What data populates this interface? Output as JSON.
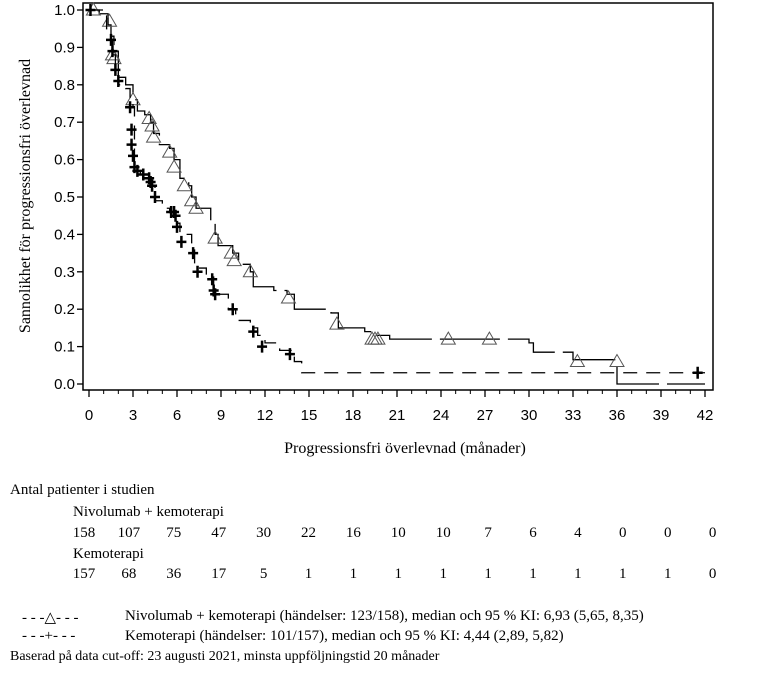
{
  "chart_data": {
    "type": "line",
    "subtype": "kaplan-meier",
    "ylabel": "Sannolikhet för progressionsfri överlevnad",
    "xlabel": "Progressionsfri överlevnad (månader)",
    "xlim": [
      0,
      42
    ],
    "ylim": [
      0,
      1
    ],
    "xticks": [
      0,
      3,
      6,
      9,
      12,
      15,
      18,
      21,
      24,
      27,
      30,
      33,
      36,
      39,
      42
    ],
    "yticks": [
      "0.0",
      "0.1",
      "0.2",
      "0.3",
      "0.4",
      "0.5",
      "0.6",
      "0.7",
      "0.8",
      "0.9",
      "1.0"
    ],
    "grid": false,
    "series": [
      {
        "name": "Nivolumab + kemoterapi",
        "line": "long-dash",
        "marker": "triangle",
        "steps": [
          [
            0,
            1.0
          ],
          [
            0.7,
            0.99
          ],
          [
            1.3,
            0.96
          ],
          [
            1.5,
            0.93
          ],
          [
            1.7,
            0.89
          ],
          [
            2.0,
            0.82
          ],
          [
            2.5,
            0.8
          ],
          [
            3.0,
            0.76
          ],
          [
            3.3,
            0.73
          ],
          [
            3.8,
            0.72
          ],
          [
            4.2,
            0.7
          ],
          [
            4.4,
            0.67
          ],
          [
            4.8,
            0.64
          ],
          [
            5.5,
            0.63
          ],
          [
            5.8,
            0.6
          ],
          [
            6.2,
            0.55
          ],
          [
            6.8,
            0.53
          ],
          [
            7.0,
            0.5
          ],
          [
            7.3,
            0.47
          ],
          [
            8.3,
            0.43
          ],
          [
            8.6,
            0.4
          ],
          [
            8.8,
            0.37
          ],
          [
            9.8,
            0.35
          ],
          [
            10.2,
            0.32
          ],
          [
            11.0,
            0.3
          ],
          [
            11.2,
            0.26
          ],
          [
            12.6,
            0.25
          ],
          [
            13.5,
            0.24
          ],
          [
            14.0,
            0.2
          ],
          [
            16.5,
            0.19
          ],
          [
            17.0,
            0.15
          ],
          [
            18.8,
            0.14
          ],
          [
            19.2,
            0.13
          ],
          [
            20.5,
            0.12
          ],
          [
            30.0,
            0.11
          ],
          [
            30.3,
            0.085
          ],
          [
            33.0,
            0.065
          ],
          [
            36.0,
            0.0
          ],
          [
            42.0,
            0.0
          ]
        ],
        "censored": [
          [
            0.3,
            1.0
          ],
          [
            1.4,
            0.97
          ],
          [
            1.6,
            0.88
          ],
          [
            1.7,
            0.87
          ],
          [
            3.0,
            0.76
          ],
          [
            4.1,
            0.71
          ],
          [
            4.3,
            0.69
          ],
          [
            4.4,
            0.66
          ],
          [
            5.5,
            0.62
          ],
          [
            5.8,
            0.58
          ],
          [
            6.5,
            0.53
          ],
          [
            7.0,
            0.49
          ],
          [
            7.3,
            0.47
          ],
          [
            8.6,
            0.39
          ],
          [
            9.7,
            0.35
          ],
          [
            9.9,
            0.33
          ],
          [
            11.0,
            0.3
          ],
          [
            13.6,
            0.23
          ],
          [
            16.9,
            0.16
          ],
          [
            19.3,
            0.12
          ],
          [
            19.5,
            0.12
          ],
          [
            19.7,
            0.12
          ],
          [
            24.5,
            0.12
          ],
          [
            27.3,
            0.12
          ],
          [
            33.3,
            0.06
          ],
          [
            36.0,
            0.06
          ]
        ]
      },
      {
        "name": "Kemoterapi",
        "line": "dash",
        "marker": "plus",
        "steps": [
          [
            0,
            1.0
          ],
          [
            1.2,
            0.95
          ],
          [
            1.5,
            0.92
          ],
          [
            1.6,
            0.88
          ],
          [
            1.8,
            0.84
          ],
          [
            2.0,
            0.8
          ],
          [
            2.5,
            0.79
          ],
          [
            2.8,
            0.75
          ],
          [
            3.0,
            0.74
          ],
          [
            3.1,
            0.57
          ],
          [
            3.5,
            0.56
          ],
          [
            4.0,
            0.55
          ],
          [
            4.3,
            0.53
          ],
          [
            4.5,
            0.49
          ],
          [
            5.0,
            0.47
          ],
          [
            5.5,
            0.46
          ],
          [
            6.0,
            0.43
          ],
          [
            6.2,
            0.4
          ],
          [
            7.0,
            0.36
          ],
          [
            7.2,
            0.31
          ],
          [
            8.0,
            0.29
          ],
          [
            8.5,
            0.24
          ],
          [
            9.0,
            0.24
          ],
          [
            9.5,
            0.2
          ],
          [
            10.0,
            0.17
          ],
          [
            11.0,
            0.15
          ],
          [
            11.5,
            0.13
          ],
          [
            12.0,
            0.11
          ],
          [
            13.0,
            0.09
          ],
          [
            14.0,
            0.06
          ],
          [
            14.5,
            0.03
          ],
          [
            42.0,
            0.03
          ]
        ],
        "censored": [
          [
            0.1,
            1.0
          ],
          [
            1.5,
            0.92
          ],
          [
            1.6,
            0.89
          ],
          [
            1.8,
            0.84
          ],
          [
            2.0,
            0.81
          ],
          [
            2.8,
            0.74
          ],
          [
            2.9,
            0.68
          ],
          [
            2.9,
            0.64
          ],
          [
            3.0,
            0.61
          ],
          [
            3.1,
            0.58
          ],
          [
            3.3,
            0.57
          ],
          [
            3.7,
            0.56
          ],
          [
            4.1,
            0.55
          ],
          [
            4.2,
            0.54
          ],
          [
            4.3,
            0.53
          ],
          [
            4.5,
            0.5
          ],
          [
            5.6,
            0.46
          ],
          [
            5.8,
            0.46
          ],
          [
            5.9,
            0.45
          ],
          [
            6.0,
            0.42
          ],
          [
            6.3,
            0.38
          ],
          [
            7.1,
            0.35
          ],
          [
            7.4,
            0.3
          ],
          [
            8.4,
            0.28
          ],
          [
            8.5,
            0.25
          ],
          [
            8.6,
            0.24
          ],
          [
            9.8,
            0.2
          ],
          [
            11.2,
            0.14
          ],
          [
            11.8,
            0.1
          ],
          [
            13.7,
            0.08
          ],
          [
            41.5,
            0.03
          ]
        ]
      }
    ]
  },
  "risk_table": {
    "title": "Antal patienter i studien",
    "groups": [
      {
        "name": "Nivolumab + kemoterapi",
        "values": [
          "158",
          "107",
          "75",
          "47",
          "30",
          "22",
          "16",
          "10",
          "10",
          "7",
          "6",
          "4",
          "0",
          "0",
          "0"
        ]
      },
      {
        "name": "Kemoterapi",
        "values": [
          "157",
          "68",
          "36",
          "17",
          "5",
          "1",
          "1",
          "1",
          "1",
          "1",
          "1",
          "1",
          "1",
          "1",
          "0"
        ]
      }
    ]
  },
  "legend": [
    {
      "symbol": "- - -△- - -",
      "text": "Nivolumab + kemoterapi (händelser: 123/158), median och 95 % KI: 6,93 (5,65, 8,35)"
    },
    {
      "symbol": "- - -+- - -",
      "text": "Kemoterapi (händelser: 101/157), median och 95 % KI: 4,44 (2,89, 5,82)"
    }
  ],
  "footnote": "Baserad på data cut-off: 23 augusti 2021, minsta uppföljningstid 20 månader"
}
